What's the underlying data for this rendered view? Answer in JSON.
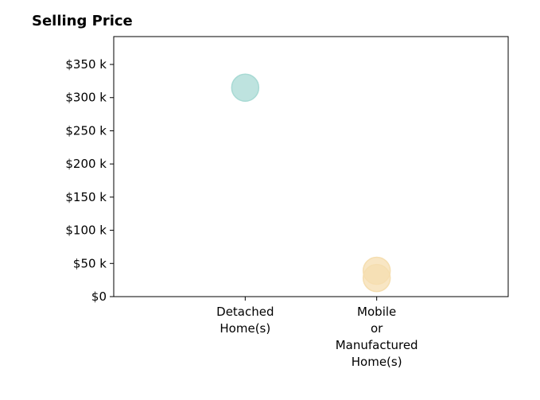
{
  "chart_data": {
    "type": "scatter",
    "title": "Selling Price",
    "xlabel": "",
    "ylabel": "",
    "categories": [
      [
        "Detached",
        "Home(s)"
      ],
      [
        "Mobile",
        "or",
        "Manufactured",
        "Home(s)"
      ]
    ],
    "y_ticks": [
      {
        "value": 0,
        "label": "$0"
      },
      {
        "value": 50000,
        "label": "$50 k"
      },
      {
        "value": 100000,
        "label": "$100 k"
      },
      {
        "value": 150000,
        "label": "$150 k"
      },
      {
        "value": 200000,
        "label": "$200 k"
      },
      {
        "value": 250000,
        "label": "$250 k"
      },
      {
        "value": 300000,
        "label": "$300 k"
      },
      {
        "value": 350000,
        "label": "$350 k"
      }
    ],
    "ylim": [
      0,
      392000
    ],
    "xlim": [
      -1,
      2
    ],
    "grid": false,
    "points": [
      {
        "category_index": 0,
        "value": 315000,
        "color": "#a8dad4"
      },
      {
        "category_index": 1,
        "value": 39000,
        "color": "#f5deb0"
      },
      {
        "category_index": 1,
        "value": 28000,
        "color": "#f5deb0"
      }
    ]
  }
}
